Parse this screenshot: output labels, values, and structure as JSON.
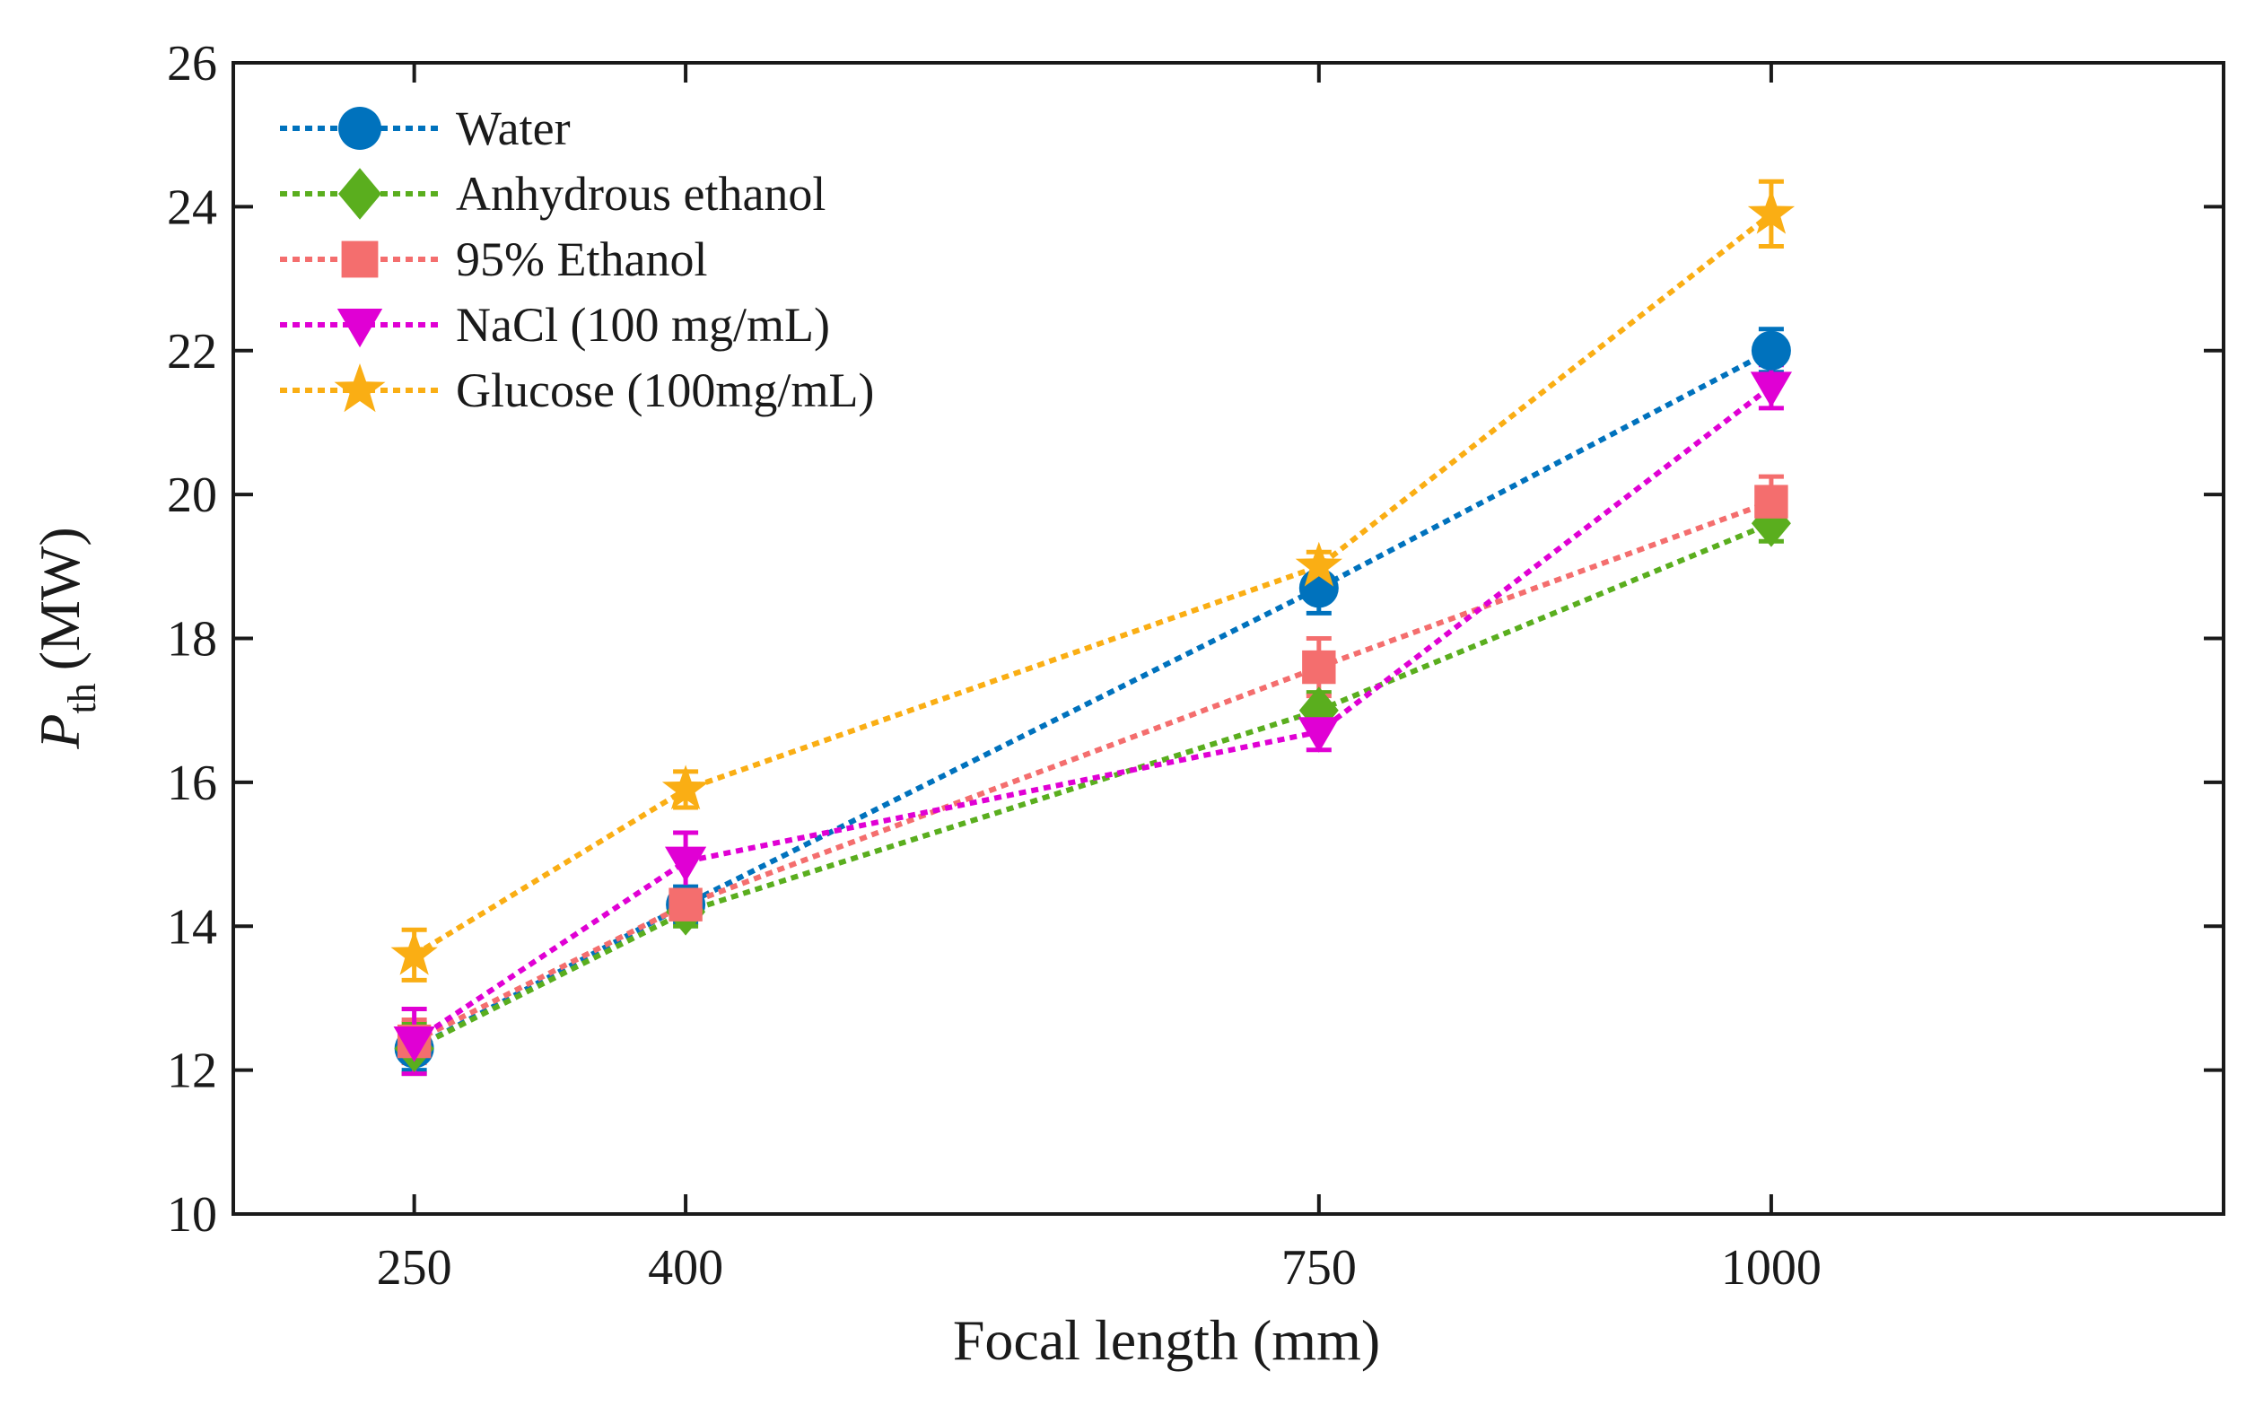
{
  "chart_data": {
    "type": "line",
    "x": [
      250,
      400,
      750,
      1000
    ],
    "x_ticks": [
      "250",
      "400",
      "750",
      "1000"
    ],
    "y_ticks": [
      "10",
      "12",
      "14",
      "16",
      "18",
      "20",
      "22",
      "24",
      "26"
    ],
    "xlim": [
      150,
      1250
    ],
    "ylim": [
      10,
      26
    ],
    "xlabel": "Focal length (mm)",
    "ylabel": {
      "main": "P",
      "sub": "th",
      "unit": "(MW)"
    },
    "grid": false,
    "legend_position": "top-left",
    "series": [
      {
        "name": "Water",
        "marker": "circle",
        "color": "#0072BD",
        "values": [
          12.3,
          14.3,
          18.7,
          22.0
        ],
        "errors": [
          0.3,
          0.25,
          0.35,
          0.3
        ]
      },
      {
        "name": "Anhydrous ethanol",
        "marker": "diamond",
        "color": "#5AAE1E",
        "values": [
          12.3,
          14.2,
          17.0,
          19.6
        ],
        "errors": [
          0.35,
          0.2,
          0.25,
          0.25
        ]
      },
      {
        "name": "95% Ethanol",
        "marker": "square",
        "color": "#F46E6E",
        "values": [
          12.4,
          14.3,
          17.6,
          19.9
        ],
        "errors": [
          0.3,
          0.2,
          0.4,
          0.35
        ]
      },
      {
        "name": "NaCl (100 mg/mL)",
        "marker": "triangle-down",
        "color": "#E000D4",
        "values": [
          12.4,
          14.9,
          16.7,
          21.5
        ],
        "errors": [
          0.45,
          0.4,
          0.25,
          0.3
        ]
      },
      {
        "name": "Glucose (100mg/mL)",
        "marker": "star",
        "color": "#FAAE14",
        "values": [
          13.6,
          15.9,
          19.0,
          23.9
        ],
        "errors": [
          0.35,
          0.25,
          0.2,
          0.45
        ]
      }
    ]
  }
}
